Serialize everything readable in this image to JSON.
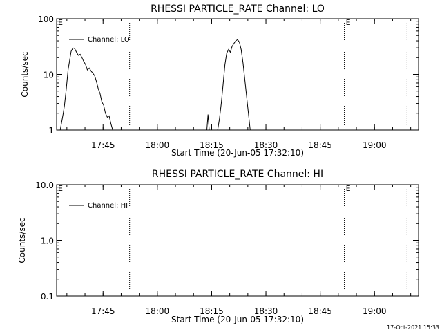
{
  "page": {
    "footer_timestamp": "17-Oct-2021 15:33",
    "background": "#ffffff",
    "foreground": "#000000"
  },
  "chart_data": [
    {
      "type": "line",
      "title": "RHESSI PARTICLE_RATE Channel: LO",
      "xlabel": "Start Time (20-Jun-05 17:32:10)",
      "ylabel": "Counts/sec",
      "y_scale": "log",
      "ylim": [
        1,
        100
      ],
      "xlim": [
        "17:32:10",
        "19:12:10"
      ],
      "x_ticks": [
        "17:45",
        "18:00",
        "18:15",
        "18:30",
        "18:45",
        "19:00"
      ],
      "y_ticks": [
        "1",
        "10",
        "100"
      ],
      "grid": false,
      "legend_position": "top-left",
      "markers": [
        {
          "time": "17:32:10",
          "label": "E"
        },
        {
          "time": "17:52:20",
          "label": ""
        },
        {
          "time": "18:51:40",
          "label": "E"
        },
        {
          "time": "19:09:00",
          "label": ""
        }
      ],
      "series": [
        {
          "name": "Channel: LO",
          "segments": [
            {
              "x": [
                "17:33:10",
                "17:34:00",
                "17:34:20",
                "17:34:50",
                "17:35:20",
                "17:35:50",
                "17:36:10",
                "17:36:40",
                "17:37:10",
                "17:37:40",
                "17:38:10",
                "17:38:40",
                "17:39:10",
                "17:39:40",
                "17:40:10",
                "17:40:40",
                "17:41:10",
                "17:41:40",
                "17:42:10",
                "17:42:40",
                "17:43:10",
                "17:43:40",
                "17:44:10",
                "17:44:40",
                "17:45:10",
                "17:45:40",
                "17:46:10",
                "17:46:40",
                "17:47:10",
                "17:47:40"
              ],
              "values": [
                1.0,
                2.0,
                2.8,
                5.5,
                12,
                19,
                26,
                30,
                29,
                25,
                22,
                23,
                20,
                17,
                15,
                12,
                13,
                11.5,
                10.5,
                9.5,
                7.5,
                5.5,
                4.5,
                3.2,
                2.8,
                2.0,
                1.7,
                1.8,
                1.3,
                1.0
              ]
            },
            {
              "x": [
                "18:13:40",
                "18:14:00",
                "18:14:20"
              ],
              "values": [
                1.0,
                1.9,
                1.0
              ]
            },
            {
              "x": [
                "18:16:40",
                "18:17:10",
                "18:17:40",
                "18:18:10",
                "18:18:40",
                "18:19:10",
                "18:19:40",
                "18:20:10",
                "18:20:40",
                "18:21:10",
                "18:21:40",
                "18:22:10",
                "18:22:40",
                "18:23:10",
                "18:23:40",
                "18:24:10",
                "18:24:40",
                "18:25:10",
                "18:25:40"
              ],
              "values": [
                1.0,
                1.6,
                3.0,
                6.5,
                15,
                24,
                28,
                25,
                32,
                36,
                40,
                42,
                38,
                28,
                16,
                8,
                4,
                2,
                1.0
              ]
            }
          ]
        }
      ]
    },
    {
      "type": "line",
      "title": "RHESSI PARTICLE_RATE Channel: HI",
      "xlabel": "Start Time (20-Jun-05 17:32:10)",
      "ylabel": "Counts/sec",
      "y_scale": "log",
      "ylim": [
        0.1,
        10
      ],
      "xlim": [
        "17:32:10",
        "19:12:10"
      ],
      "x_ticks": [
        "17:45",
        "18:00",
        "18:15",
        "18:30",
        "18:45",
        "19:00"
      ],
      "y_ticks": [
        "0.1",
        "1.0",
        "10.0"
      ],
      "grid": false,
      "legend_position": "top-left",
      "markers": [
        {
          "time": "17:32:10",
          "label": "E"
        },
        {
          "time": "17:52:20",
          "label": ""
        },
        {
          "time": "18:51:40",
          "label": "E"
        },
        {
          "time": "19:09:00",
          "label": ""
        }
      ],
      "series": [
        {
          "name": "Channel: HI",
          "segments": []
        }
      ]
    }
  ]
}
